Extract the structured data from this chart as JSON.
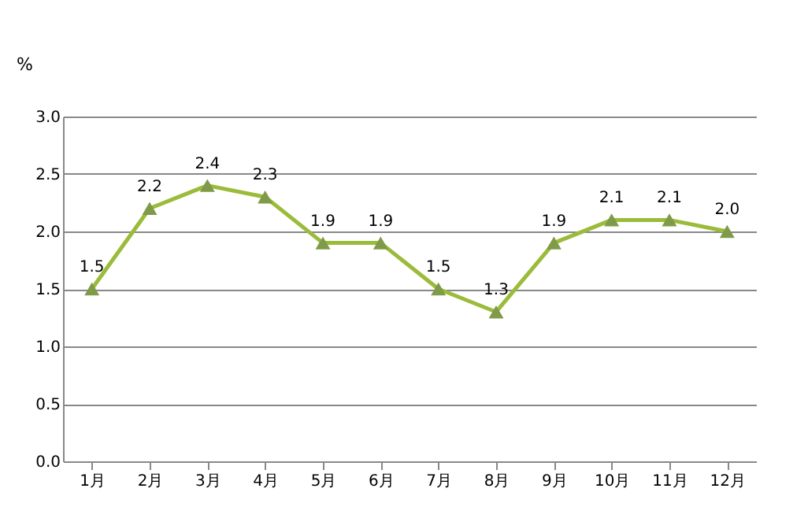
{
  "chart_data": {
    "type": "line",
    "ylabel": "%",
    "categories": [
      "1月",
      "2月",
      "3月",
      "4月",
      "5月",
      "6月",
      "7月",
      "8月",
      "9月",
      "10月",
      "11月",
      "12月"
    ],
    "series": [
      {
        "color": "#9bbb3a",
        "values": [
          1.5,
          2.2,
          2.4,
          2.3,
          1.9,
          1.9,
          1.5,
          1.3,
          1.9,
          2.1,
          2.1,
          2.0
        ],
        "value_labels": [
          "1.5",
          "2.2",
          "2.4",
          "2.3",
          "1.9",
          "1.9",
          "1.5",
          "1.3",
          "1.9",
          "2.1",
          "2.1",
          "2.0"
        ]
      }
    ],
    "ylim": [
      0,
      3
    ],
    "yticks": [
      {
        "value": 0,
        "label": "0.0"
      },
      0.5,
      {
        "value": 1,
        "label": "1.0"
      },
      1.5,
      {
        "value": 2,
        "label": "2.0"
      },
      2.5,
      {
        "value": 3,
        "label": "3.0"
      }
    ],
    "grid": "y",
    "marker": "triangle",
    "line_style": "solid",
    "legend": false
  }
}
